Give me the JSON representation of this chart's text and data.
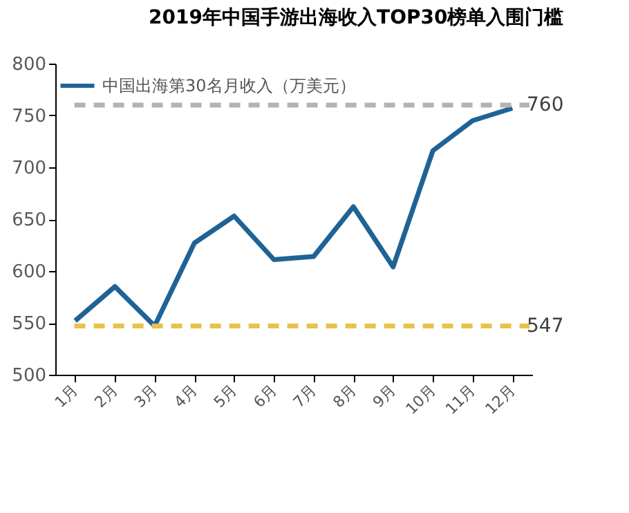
{
  "chart_data": {
    "type": "line",
    "title": "2019年中国手游出海收入TOP30榜单入围门槛",
    "categories": [
      "1月",
      "2月",
      "3月",
      "4月",
      "5月",
      "6月",
      "7月",
      "8月",
      "9月",
      "10月",
      "11月",
      "12月"
    ],
    "series": [
      {
        "name": "中国出海第30名月收入（万美元）",
        "color": "#1f6396",
        "values": [
          552,
          585,
          547,
          627,
          653,
          611,
          614,
          662,
          604,
          716,
          745,
          757
        ]
      }
    ],
    "ylim": [
      500,
      800
    ],
    "yticks": [
      500,
      550,
      600,
      650,
      700,
      750,
      800
    ],
    "ref_lines": [
      {
        "axis": "y",
        "value": 760,
        "label": "760",
        "color": "#b3b3b3",
        "line_style": "dashed"
      },
      {
        "axis": "y",
        "value": 547,
        "label": "547",
        "color": "#e8c24a",
        "line_style": "dashed"
      }
    ],
    "grid": false,
    "legend": "top left",
    "marker": "none",
    "line_style": "solid"
  }
}
